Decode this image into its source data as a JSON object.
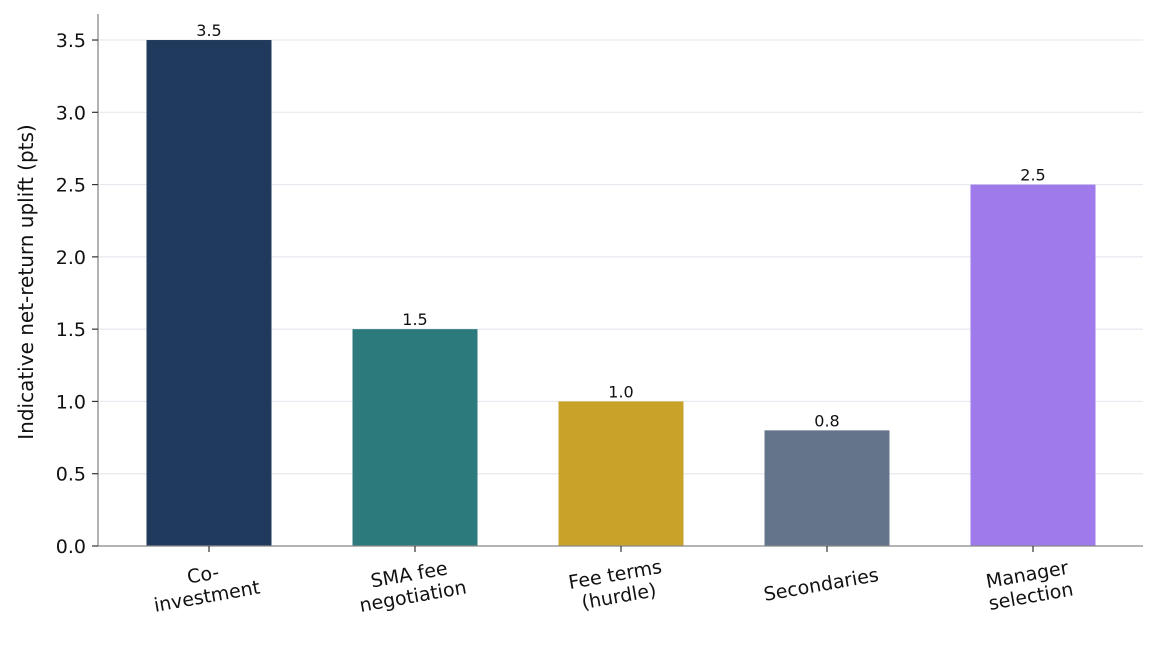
{
  "chart_data": {
    "type": "bar",
    "categories": [
      [
        "Co-",
        "investment"
      ],
      [
        "SMA fee",
        "negotiation"
      ],
      [
        "Fee terms",
        "(hurdle)"
      ],
      [
        "Secondaries"
      ],
      [
        "Manager",
        "selection"
      ]
    ],
    "values": [
      3.5,
      1.5,
      1.0,
      0.8,
      2.5
    ],
    "value_labels": [
      "3.5",
      "1.5",
      "1.0",
      "0.8",
      "2.5"
    ],
    "colors": [
      "#1f3a5c",
      "#2c7a7b",
      "#c9a22a",
      "#64748b",
      "#9f7aea"
    ],
    "title": "",
    "xlabel": "",
    "ylabel": "Indicative net-return uplift (pts)",
    "ylim": [
      0,
      3.68
    ],
    "yticks": [
      0.0,
      0.5,
      1.0,
      1.5,
      2.0,
      2.5,
      3.0,
      3.5
    ],
    "ytick_labels": [
      "0.0",
      "0.5",
      "1.0",
      "1.5",
      "2.0",
      "2.5",
      "3.0",
      "3.5"
    ],
    "grid": "horizontal",
    "grid_color": "#e6e9ef",
    "axis_color": "#888888",
    "xtick_rotation": "slight counter-clockwise"
  }
}
